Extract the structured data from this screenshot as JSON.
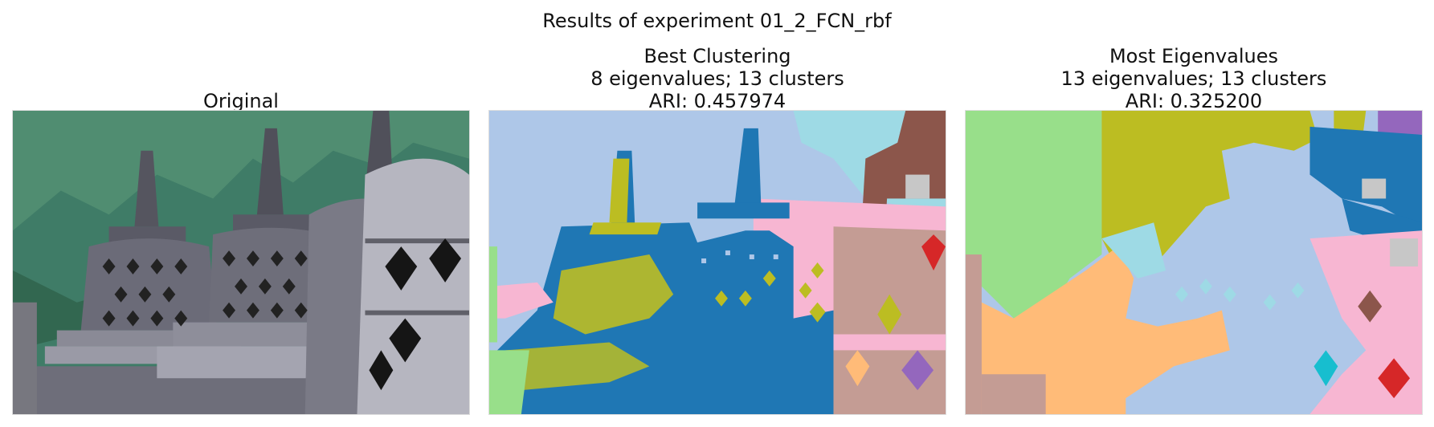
{
  "figure": {
    "suptitle": "Results of experiment 01_2_FCN_rbf"
  },
  "panels": [
    {
      "id": "original",
      "title_lines": [
        "Original"
      ]
    },
    {
      "id": "best-clustering",
      "title_lines": [
        "Best Clustering",
        "8 eigenvalues; 13 clusters",
        "ARI: 0.457974"
      ]
    },
    {
      "id": "most-eigenvalues",
      "title_lines": [
        "Most Eigenvalues",
        "13 eigenvalues; 13 clusters",
        "ARI: 0.325200"
      ]
    }
  ],
  "colors": {
    "sky_blue": "#aec7e8",
    "blue": "#1f77b4",
    "olive": "#bcbd22",
    "pink": "#f7b6d2",
    "tan": "#c49c94",
    "brown": "#8c564b",
    "light_cyan": "#9edae5",
    "cyan": "#17becf",
    "green": "#98df8a",
    "orange": "#ffbb78",
    "purple": "#9467bd",
    "red": "#d62728",
    "gray": "#c7c7c7",
    "mountain_green": "#3f7c67",
    "stone_dark": "#4b4b55",
    "stone_mid": "#8a8a96",
    "stone_light": "#b6b6c0"
  }
}
